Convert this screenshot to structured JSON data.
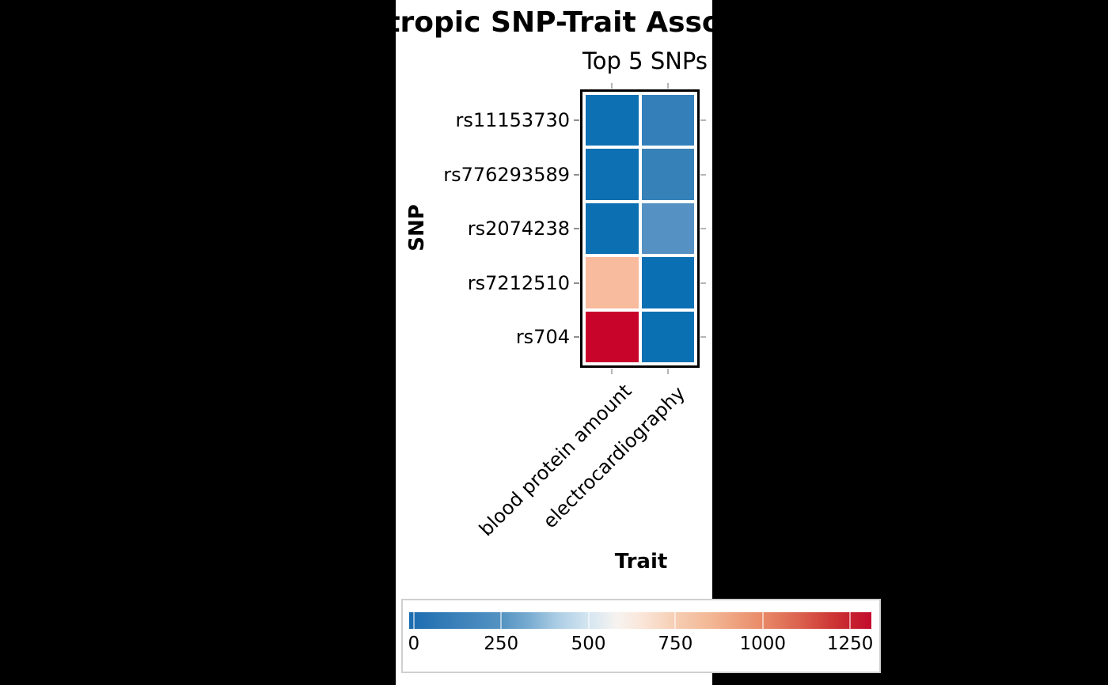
{
  "figure": {
    "background_color": "#000000",
    "panel_color": "#ffffff"
  },
  "chart_data": {
    "type": "heatmap",
    "title": "tropic SNP-Trait Asso",
    "subtitle": "Top 5 SNPs",
    "xlabel": "Trait",
    "ylabel": "SNP",
    "x_categories": [
      "blood protein amount",
      "electrocardiography"
    ],
    "y_categories": [
      "rs11153730",
      "rs776293589",
      "rs2074238",
      "rs7212510",
      "rs704"
    ],
    "values": [
      [
        40,
        180
      ],
      [
        45,
        175
      ],
      [
        50,
        290
      ],
      [
        880,
        55
      ],
      [
        1281,
        60
      ]
    ],
    "cell_colors": [
      [
        "#0d70b2",
        "#347fba"
      ],
      [
        "#0d70b2",
        "#3781b9"
      ],
      [
        "#0c6fb1",
        "#5591c3"
      ],
      [
        "#f8bb9d",
        "#0b70b3"
      ],
      [
        "#c8042b",
        "#0a70b2"
      ]
    ],
    "grid": "white gaps between cells",
    "legend_position": "bottom",
    "colorbar": {
      "orientation": "horizontal",
      "colormap": "RdBu_r",
      "ticks": [
        "0",
        "250",
        "500",
        "750",
        "1000",
        "1250"
      ],
      "tick_values": [
        0,
        250,
        500,
        750,
        1000,
        1250
      ],
      "range_approx": [
        0,
        1300
      ],
      "gradient_stops": [
        [
          "0%",
          "#1a6cb0"
        ],
        [
          "10%",
          "#3a80b9"
        ],
        [
          "20%",
          "#5493c2"
        ],
        [
          "26%",
          "#79acd1"
        ],
        [
          "32%",
          "#abcde4"
        ],
        [
          "39%",
          "#d5e6f1"
        ],
        [
          "45%",
          "#f7f3f0"
        ],
        [
          "50%",
          "#fae7db"
        ],
        [
          "58%",
          "#f6ccb1"
        ],
        [
          "65%",
          "#f3b896"
        ],
        [
          "76%",
          "#e98c69"
        ],
        [
          "85%",
          "#da5f4c"
        ],
        [
          "92%",
          "#cc3434"
        ],
        [
          "97%",
          "#c41a2e"
        ],
        [
          "100%",
          "#c40b2d"
        ]
      ]
    }
  },
  "layout_colors": {
    "axes_border": "#000000",
    "tick_color": "#b5b5b5",
    "legend_border": "#cfcfcf"
  }
}
